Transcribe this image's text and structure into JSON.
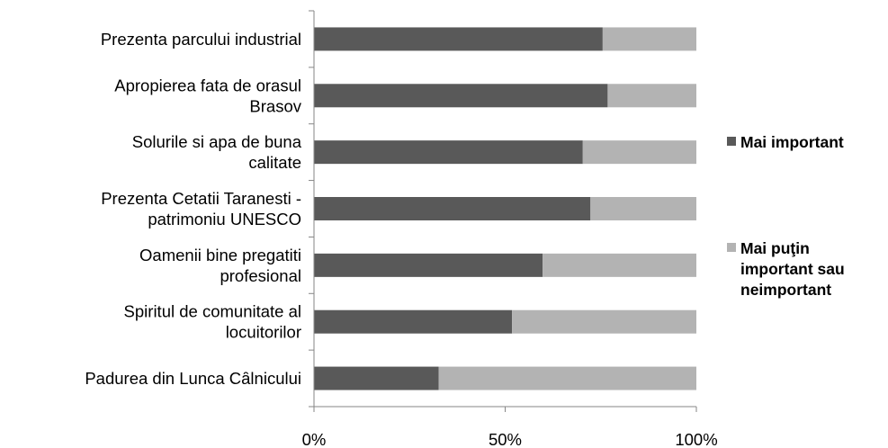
{
  "chart_data": {
    "type": "bar",
    "orientation": "horizontal",
    "stacked": "percent",
    "categories": [
      "Prezenta parcului industrial",
      "Apropierea fata de orasul Brasov",
      "Solurile si apa de buna calitate",
      "Prezenta Cetatii Taranesti - patrimoniu UNESCO",
      "Oamenii bine pregatiti profesional",
      "Spiritul de comunitate al locuitorilor",
      "Padurea din Lunca Cȃlnicului"
    ],
    "category_lines": [
      [
        "Prezenta parcului industrial"
      ],
      [
        "Apropierea fata de orasul",
        "Brasov"
      ],
      [
        "Solurile si apa de buna",
        "calitate"
      ],
      [
        "Prezenta Cetatii Taranesti -",
        "patrimoniu UNESCO"
      ],
      [
        "Oamenii bine pregatiti",
        "profesional"
      ],
      [
        "Spiritul de comunitate al",
        "locuitorilor"
      ],
      [
        "Padurea din Lunca Cȃlnicului"
      ]
    ],
    "series": [
      {
        "name": "Mai important",
        "name_lines": [
          "Mai important"
        ],
        "color": "#595959",
        "values": [
          75.5,
          76.8,
          70.3,
          72.3,
          59.8,
          51.8,
          32.6
        ]
      },
      {
        "name": "Mai puţin important sau neimportant",
        "name_lines": [
          "Mai puţin",
          "important sau",
          "neimportant"
        ],
        "color": "#b3b3b3",
        "values": [
          24.5,
          23.2,
          29.7,
          27.7,
          40.2,
          48.2,
          67.4
        ]
      }
    ],
    "xlim": [
      0,
      100
    ],
    "x_ticks": [
      0,
      50,
      100
    ],
    "x_tick_labels": [
      "0%",
      "50%",
      "100%"
    ],
    "xlabel": "",
    "ylabel": "",
    "title": "",
    "grid": false,
    "legend_position": "right"
  }
}
